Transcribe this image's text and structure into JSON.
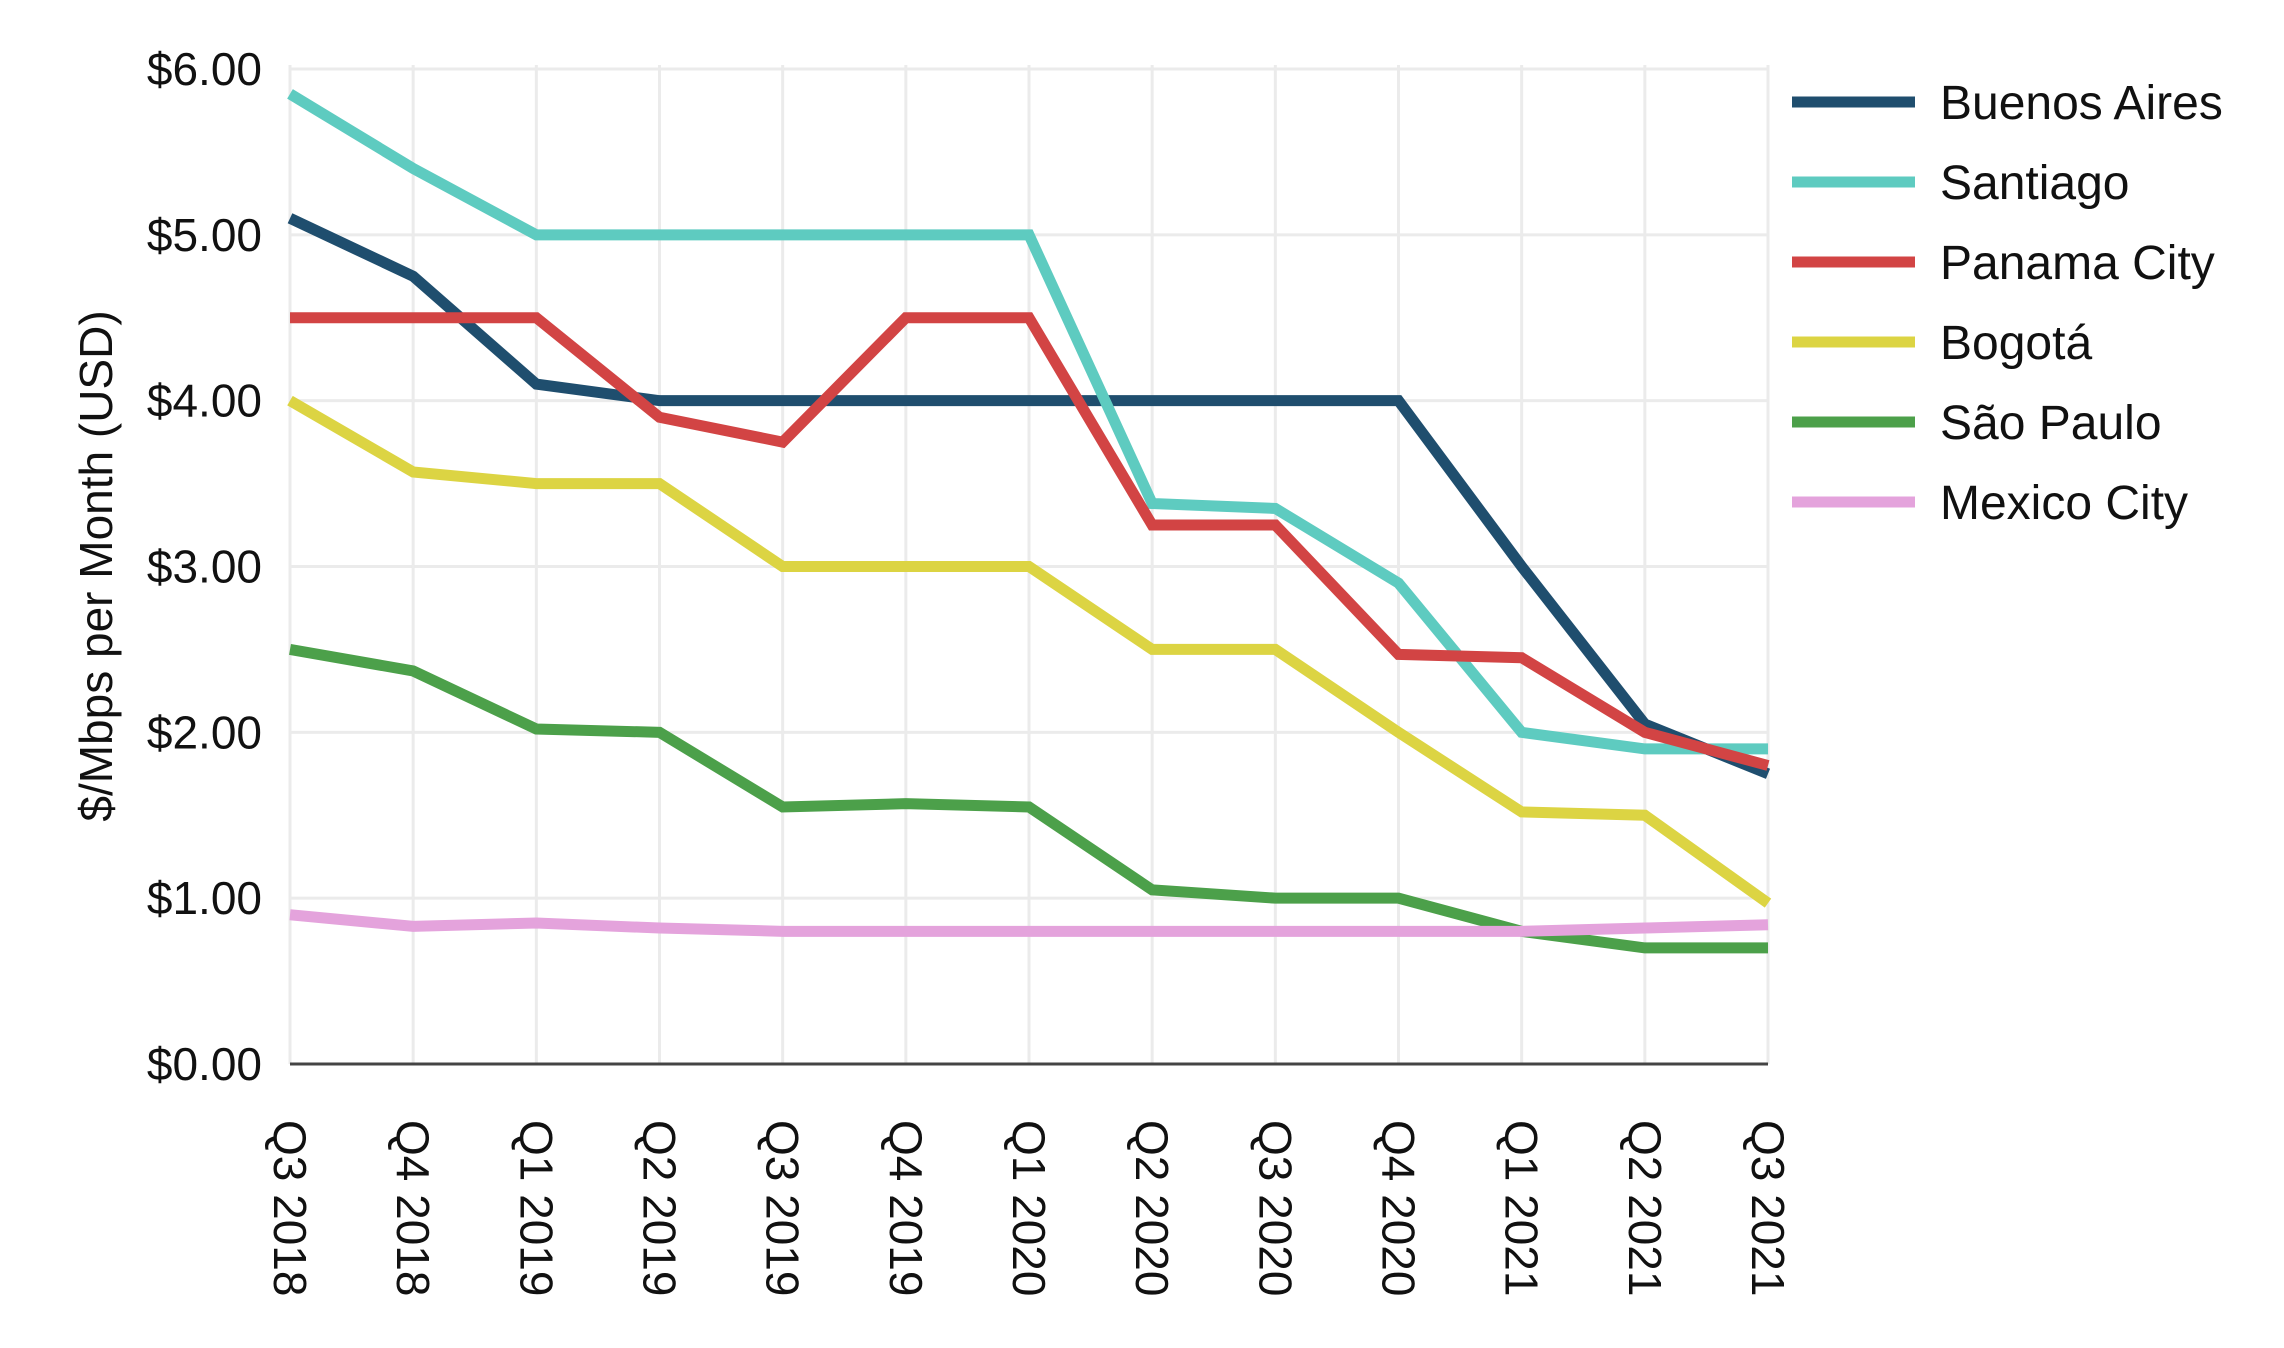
{
  "chart_data": {
    "type": "line",
    "title": "",
    "xlabel": "",
    "ylabel": "$/Mbps per Month (USD)",
    "ylim": [
      0,
      6
    ],
    "yticks": [
      "$0.00",
      "$1.00",
      "$2.00",
      "$3.00",
      "$4.00",
      "$5.00",
      "$6.00"
    ],
    "grid": true,
    "legend_position": "right",
    "categories": [
      "Q3 2018",
      "Q4 2018",
      "Q1 2019",
      "Q2 2019",
      "Q3 2019",
      "Q4 2019",
      "Q1 2020",
      "Q2 2020",
      "Q3 2020",
      "Q4 2020",
      "Q1 2021",
      "Q2 2021",
      "Q3 2021"
    ],
    "series": [
      {
        "name": "Buenos Aires",
        "color": "#1f4e6e",
        "values": [
          5.1,
          4.75,
          4.1,
          4.0,
          4.0,
          4.0,
          4.0,
          4.0,
          4.0,
          4.0,
          3.0,
          2.05,
          1.75
        ]
      },
      {
        "name": "Santiago",
        "color": "#5ecbc0",
        "values": [
          5.85,
          5.4,
          5.0,
          5.0,
          5.0,
          5.0,
          5.0,
          3.38,
          3.35,
          2.9,
          2.0,
          1.9,
          1.9
        ]
      },
      {
        "name": "Panama City",
        "color": "#d24444",
        "values": [
          4.5,
          4.5,
          4.5,
          3.9,
          3.75,
          4.5,
          4.5,
          3.25,
          3.25,
          2.47,
          2.45,
          2.0,
          1.8
        ]
      },
      {
        "name": "Bogotá",
        "color": "#dcd443",
        "values": [
          4.0,
          3.57,
          3.5,
          3.5,
          3.0,
          3.0,
          3.0,
          2.5,
          2.5,
          2.0,
          1.52,
          1.5,
          0.97
        ]
      },
      {
        "name": "São Paulo",
        "color": "#4ca04a",
        "values": [
          2.5,
          2.37,
          2.02,
          2.0,
          1.55,
          1.57,
          1.55,
          1.05,
          1.0,
          1.0,
          0.8,
          0.7,
          0.7
        ]
      },
      {
        "name": "Mexico City",
        "color": "#e4a3dc",
        "values": [
          0.9,
          0.83,
          0.85,
          0.82,
          0.8,
          0.8,
          0.8,
          0.8,
          0.8,
          0.8,
          0.8,
          0.82,
          0.84
        ]
      }
    ]
  }
}
